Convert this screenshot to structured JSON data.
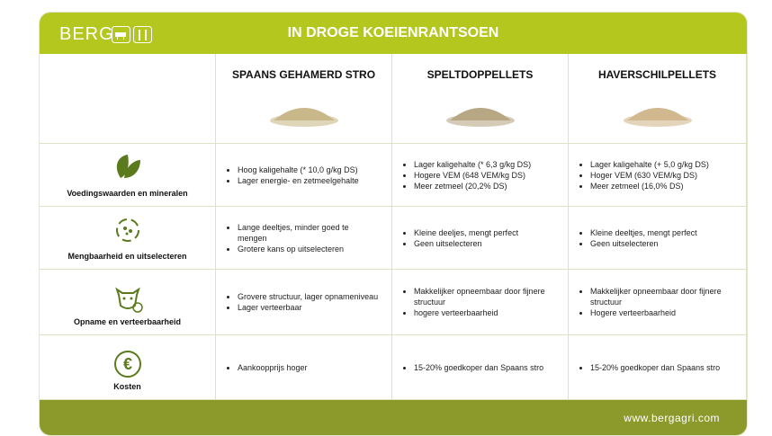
{
  "header": {
    "brand": "BERG",
    "title": "IN DROGE KOEIENRANTSOEN"
  },
  "table": {
    "columns": [
      "SPAANS GEHAMERD STRO",
      "SPELTDOPPELLETS",
      "HAVERSCHILPELLETS"
    ],
    "rows": [
      {
        "label": "Voedingswaarden en mineralen",
        "cells": [
          [
            "Hoog kaligehalte (* 10,0 g/kg DS)",
            "Lager energie- en zetmeelgehalte"
          ],
          [
            "Lager kaligehalte (* 6,3 g/kg DS)",
            "Hogere VEM (648 VEM/kg DS)",
            "Meer zetmeel (20,2% DS)"
          ],
          [
            "Lager kaligehalte (+ 5,0 g/kg DS)",
            "Hoger VEM (630 VEM/kg DS)",
            "Meer zetmeel (16,0% DS)"
          ]
        ]
      },
      {
        "label": "Mengbaarheid en uitselecteren",
        "cells": [
          [
            "Lange deeltjes, minder goed te mengen",
            "Grotere kans op uitselecteren"
          ],
          [
            "Kleine deeljes, mengt perfect",
            "Geen uitselecteren"
          ],
          [
            "Kleine deeltjes, mengt perfect",
            "Geen uitselecteren"
          ]
        ]
      },
      {
        "label": "Opname en verteerbaarheid",
        "cells": [
          [
            "Grovere structuur, lager opnameniveau",
            "Lager verteerbaar"
          ],
          [
            "Makkelijker opneembaar door fijnere structuur",
            "hogere verteerbaarheid"
          ],
          [
            "Makkelijker opneembaar door fijnere structuur",
            "Hogere verteerbaarheid"
          ]
        ]
      },
      {
        "label": "Kosten",
        "cells": [
          [
            "Aankoopprijs hoger"
          ],
          [
            "15-20% goedkoper dan Spaans stro"
          ],
          [
            "15-20% goedkoper dan Spaans stro"
          ]
        ]
      }
    ]
  },
  "footer": {
    "url": "www.bergagri.com"
  }
}
